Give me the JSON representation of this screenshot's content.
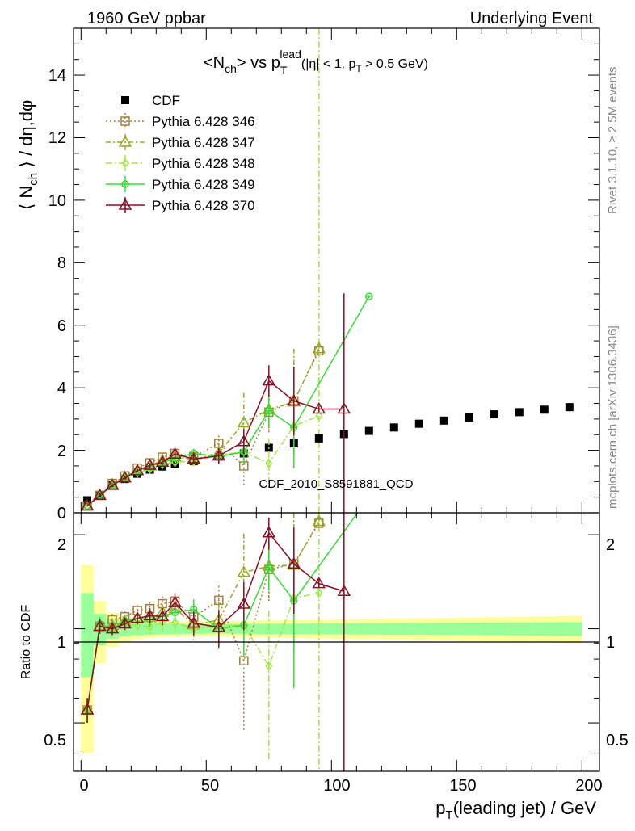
{
  "header": {
    "left": "1960 GeV ppbar",
    "right": "Underlying Event"
  },
  "side": {
    "rivet": "Rivet 3.1.10, ≥ 2.5M events",
    "mcplots": "mcplots.cern.ch [arXiv:1306.3436]"
  },
  "watermark": "CDF_2010_S8591881_QCD",
  "title": {
    "main": "<N",
    "sub1": "ch",
    "mid": "> vs p",
    "sub2": "T",
    "sup": "lead",
    "tail": "(|η| < 1, p",
    "sub3": "T",
    "end": " > 0.5 GeV)"
  },
  "axes": {
    "ylabel_top": "⟨ N",
    "ylabel_top_sub": "ch",
    "ylabel_top_tail": " ⟩ / dη,dφ",
    "ylabel_bottom": "Ratio to CDF",
    "xlabel": "p",
    "xlabel_sub": "T",
    "xlabel_tail": "(leading jet) / GeV",
    "x_ticks": [
      "0",
      "50",
      "100",
      "150",
      "200"
    ],
    "y_ticks_top": [
      "0",
      "2",
      "4",
      "6",
      "8",
      "10",
      "12",
      "14"
    ],
    "y_ticks_bottom": [
      "0.5",
      "1",
      "2"
    ]
  },
  "chart_data": {
    "type": "scatter",
    "xlim": [
      -3,
      207
    ],
    "ylim": [
      0,
      15.5
    ],
    "ratio_ylim_log": [
      0.35,
      2.35
    ],
    "legend_position": "top-left",
    "series": [
      {
        "name": "CDF",
        "color": "#000000",
        "marker": "square",
        "x": [
          2.5,
          7.5,
          12.5,
          17.5,
          22.5,
          27.5,
          32.5,
          37.5,
          45,
          55,
          65,
          75,
          85,
          95,
          105,
          115,
          125,
          135,
          145,
          155,
          165,
          175,
          185,
          195
        ],
        "y": [
          0.4,
          0.55,
          0.88,
          1.08,
          1.25,
          1.38,
          1.48,
          1.55,
          1.65,
          1.8,
          1.9,
          2.08,
          2.22,
          2.38,
          2.52,
          2.62,
          2.73,
          2.85,
          2.95,
          3.05,
          3.15,
          3.22,
          3.3,
          3.38
        ],
        "err": [
          0.02,
          0.02,
          0.03,
          0.03,
          0.03,
          0.03,
          0.04,
          0.04,
          0.04,
          0.05,
          0.05,
          0.06,
          0.06,
          0.07,
          0.08,
          0.08,
          0.09,
          0.09,
          0.1,
          0.1,
          0.11,
          0.12,
          0.12,
          0.13
        ]
      },
      {
        "name": "Pythia 6.428 346",
        "color": "#a57f39",
        "marker": "open-square",
        "dash": "2,3",
        "x": [
          2.5,
          7.5,
          12.5,
          17.5,
          22.5,
          27.5,
          32.5,
          37.5,
          45,
          55,
          65,
          75,
          85,
          95
        ],
        "y": [
          0.22,
          0.56,
          0.94,
          1.18,
          1.43,
          1.6,
          1.78,
          1.9,
          1.8,
          2.22,
          1.5,
          3.22,
          3.58,
          5.18
        ],
        "err": [
          0.02,
          0.03,
          0.04,
          0.05,
          0.06,
          0.08,
          0.1,
          0.12,
          0.15,
          0.25,
          0.6,
          0.7,
          1.2,
          0
        ]
      },
      {
        "name": "Pythia 6.428 347",
        "color": "#9aaa1f",
        "marker": "open-triangle",
        "dash": "6,3,2,3",
        "x": [
          2.5,
          7.5,
          12.5,
          17.5,
          22.5,
          27.5,
          32.5,
          37.5,
          45,
          55,
          65,
          75,
          85,
          95
        ],
        "y": [
          0.22,
          0.56,
          0.9,
          1.14,
          1.35,
          1.5,
          1.67,
          1.8,
          1.7,
          1.92,
          2.88,
          3.3,
          3.55,
          5.25
        ],
        "err": [
          0.02,
          0.03,
          0.04,
          0.05,
          0.06,
          0.08,
          0.1,
          0.12,
          0.15,
          0.25,
          0.95,
          0.7,
          1.7,
          0.2
        ]
      },
      {
        "name": "Pythia 6.428 348",
        "color": "#a5e64a",
        "marker": "open-diamond",
        "dash": "8,3,2,3",
        "x": [
          2.5,
          7.5,
          12.5,
          17.5,
          22.5,
          27.5,
          32.5,
          37.5,
          45,
          55,
          65,
          75,
          85,
          95
        ],
        "y": [
          0.22,
          0.56,
          0.88,
          1.12,
          1.28,
          1.4,
          1.55,
          1.62,
          1.65,
          1.85,
          1.95,
          1.58,
          2.78,
          3.1
        ],
        "err": [
          0.02,
          0.03,
          0.04,
          0.05,
          0.06,
          0.08,
          0.1,
          0.12,
          0.15,
          0.25,
          0.4,
          0.8,
          0.9,
          0
        ]
      },
      {
        "name": "Pythia 6.428 349",
        "color": "#33dd33",
        "marker": "open-circle",
        "dash": "",
        "x": [
          2.5,
          7.5,
          12.5,
          17.5,
          22.5,
          27.5,
          32.5,
          37.5,
          45,
          55,
          65,
          75,
          85,
          115
        ],
        "y": [
          0.22,
          0.57,
          0.88,
          1.14,
          1.35,
          1.48,
          1.62,
          1.75,
          1.9,
          1.8,
          1.95,
          3.27,
          2.73,
          6.92
        ],
        "err": [
          0.02,
          0.03,
          0.04,
          0.05,
          0.06,
          0.08,
          0.1,
          0.12,
          0.15,
          0.25,
          0.4,
          0.5,
          1.3,
          0.05
        ]
      },
      {
        "name": "Pythia 6.428 370",
        "color": "#8b0f24",
        "marker": "open-triangle",
        "dash": "",
        "x": [
          2.5,
          7.5,
          12.5,
          17.5,
          22.5,
          27.5,
          32.5,
          37.5,
          45,
          55,
          65,
          75,
          85,
          95,
          105
        ],
        "y": [
          0.22,
          0.56,
          0.88,
          1.12,
          1.35,
          1.52,
          1.62,
          1.88,
          1.72,
          1.82,
          2.28,
          4.22,
          3.58,
          3.32,
          3.32
        ],
        "err": [
          0.02,
          0.03,
          0.04,
          0.05,
          0.06,
          0.08,
          0.1,
          0.12,
          0.15,
          0.25,
          0.4,
          0.5,
          1.1,
          0.1,
          3.7
        ]
      }
    ],
    "vertical_line_x": 95,
    "band_inner": [
      [
        0,
        0.45
      ],
      [
        5,
        0.15
      ],
      [
        10,
        0.08
      ],
      [
        15,
        0.06
      ],
      [
        20,
        0.05
      ],
      [
        30,
        0.04
      ],
      [
        50,
        0.035
      ],
      [
        100,
        0.04
      ],
      [
        200,
        0.05
      ]
    ],
    "band_outer": [
      [
        0,
        0.9
      ],
      [
        5,
        0.3
      ],
      [
        10,
        0.15
      ],
      [
        15,
        0.1
      ],
      [
        20,
        0.08
      ],
      [
        30,
        0.06
      ],
      [
        50,
        0.055
      ],
      [
        100,
        0.07
      ],
      [
        200,
        0.1
      ]
    ]
  }
}
